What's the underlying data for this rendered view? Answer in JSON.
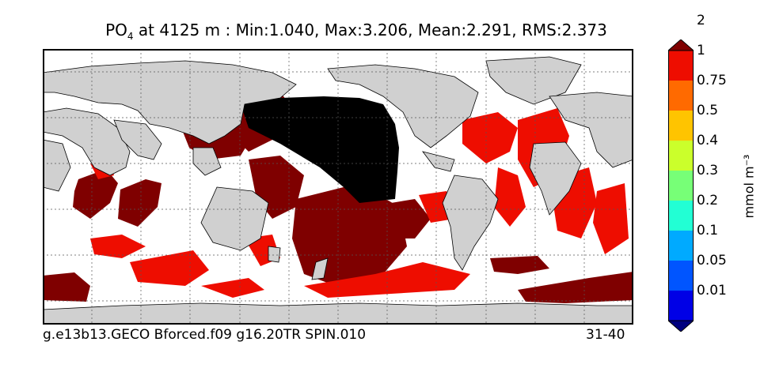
{
  "title": {
    "var": "PO",
    "sub": "4",
    "rest": " at 4125 m : Min:1.040, Max:3.206, Mean:2.291, RMS:2.373"
  },
  "footer": {
    "run": "g.e13b13.GECO Bforced.f09 g16.20TR SPIN.010",
    "years": "31-40"
  },
  "colorbar": {
    "unit": "mmol m⁻³",
    "ticks": [
      "0.01",
      "0.05",
      "0.1",
      "0.2",
      "0.3",
      "0.4",
      "0.5",
      "0.75",
      "1",
      "2"
    ],
    "colors": [
      "#00007f",
      "#0000e6",
      "#0055ff",
      "#00aaff",
      "#22ffd4",
      "#77ff77",
      "#cbff2b",
      "#ffc400",
      "#ff6a00",
      "#ee0d00",
      "#7f0000"
    ],
    "extend": "both"
  },
  "map": {
    "projection": "cylindrical",
    "land_color": "#d0d0d0",
    "grid": "dotted"
  }
}
